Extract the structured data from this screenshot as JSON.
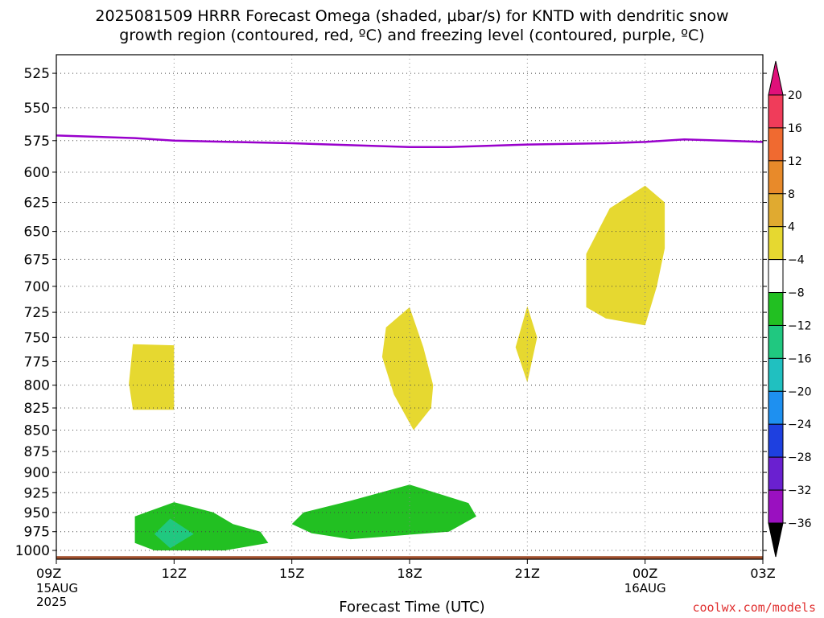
{
  "chart_data": {
    "type": "heatmap",
    "title_line1": "2025081509 HRRR Forecast Omega (shaded, μbar/s) for KNTD with dendritic snow",
    "title_line2": "growth region (contoured, red, ºC) and freezing level (contoured, purple, ºC)",
    "xlabel": "Forecast Time (UTC)",
    "credit": "coolwx.com/models",
    "x_range_hours": [
      0,
      18
    ],
    "x_ticks": [
      {
        "h": 0,
        "label": "09Z",
        "sub1": "15AUG",
        "sub2": "2025"
      },
      {
        "h": 3,
        "label": "12Z",
        "sub1": "",
        "sub2": ""
      },
      {
        "h": 6,
        "label": "15Z",
        "sub1": "",
        "sub2": ""
      },
      {
        "h": 9,
        "label": "18Z",
        "sub1": "",
        "sub2": ""
      },
      {
        "h": 12,
        "label": "21Z",
        "sub1": "",
        "sub2": ""
      },
      {
        "h": 15,
        "label": "00Z",
        "sub1": "16AUG",
        "sub2": ""
      },
      {
        "h": 18,
        "label": "03Z",
        "sub1": "",
        "sub2": ""
      }
    ],
    "y_axis": {
      "scale": "log-pressure",
      "range": [
        1012,
        512
      ],
      "ticks": [
        525,
        550,
        575,
        600,
        625,
        650,
        675,
        700,
        725,
        750,
        775,
        800,
        825,
        850,
        875,
        900,
        925,
        950,
        975,
        1000
      ]
    },
    "grid": true,
    "colorbar": {
      "labels": [
        "20",
        "16",
        "12",
        "8",
        "4",
        "−4",
        "−8",
        "−12",
        "−16",
        "−20",
        "−24",
        "−28",
        "−32",
        "−36"
      ],
      "colors": [
        "#f03c5a",
        "#f06a30",
        "#e88a2a",
        "#e0aa30",
        "#e6d830",
        "#ffffff",
        "#22c022",
        "#20c880",
        "#20c0c0",
        "#1e90f0",
        "#1e40e0",
        "#6a20d0",
        "#9a10c0",
        "#a8a8a8"
      ],
      "top_arrow_color": "#e0107a",
      "bottom_arrow_color": "#000000"
    },
    "freezing_level": {
      "color": "#9900cc",
      "points": [
        [
          0,
          571
        ],
        [
          2,
          573
        ],
        [
          3,
          575
        ],
        [
          6,
          577
        ],
        [
          9,
          580
        ],
        [
          10,
          580
        ],
        [
          12,
          578
        ],
        [
          14,
          577
        ],
        [
          15,
          576
        ],
        [
          16,
          574
        ],
        [
          17,
          575
        ],
        [
          18,
          576
        ]
      ]
    },
    "omega_regions": [
      {
        "value_range": "4 to 8",
        "color": "#e6d830",
        "points": [
          [
            1.95,
            757
          ],
          [
            3.0,
            758
          ],
          [
            3.0,
            827
          ],
          [
            1.95,
            827
          ],
          [
            1.85,
            798
          ]
        ]
      },
      {
        "value_range": "4 to 8",
        "color": "#e6d830",
        "points": [
          [
            9.0,
            720
          ],
          [
            9.35,
            760
          ],
          [
            9.6,
            800
          ],
          [
            9.55,
            825
          ],
          [
            9.1,
            850
          ],
          [
            8.6,
            810
          ],
          [
            8.3,
            770
          ],
          [
            8.4,
            740
          ]
        ]
      },
      {
        "value_range": "4 to 8",
        "color": "#e6d830",
        "points": [
          [
            12.0,
            719
          ],
          [
            12.25,
            750
          ],
          [
            12.0,
            797
          ],
          [
            11.7,
            760
          ]
        ]
      },
      {
        "value_range": "4 to 8",
        "color": "#e6d830",
        "points": [
          [
            14.1,
            630
          ],
          [
            15.0,
            611
          ],
          [
            15.5,
            625
          ],
          [
            15.5,
            665
          ],
          [
            15.3,
            700
          ],
          [
            15.0,
            738
          ],
          [
            14.0,
            731
          ],
          [
            13.5,
            720
          ],
          [
            13.5,
            670
          ]
        ]
      },
      {
        "value_range": "-8 to -4",
        "color": "#22c022",
        "points": [
          [
            3.0,
            937
          ],
          [
            4.0,
            950
          ],
          [
            4.5,
            965
          ],
          [
            5.2,
            975
          ],
          [
            5.4,
            990
          ],
          [
            4.3,
            1000
          ],
          [
            2.5,
            1000
          ],
          [
            2.0,
            990
          ],
          [
            2.0,
            955
          ]
        ]
      },
      {
        "value_range": "-12 to -8",
        "color": "#20c880",
        "points": [
          [
            2.5,
            978
          ],
          [
            2.9,
            958
          ],
          [
            3.5,
            978
          ],
          [
            2.9,
            997
          ]
        ]
      },
      {
        "value_range": "-8 to -4",
        "color": "#22c022",
        "points": [
          [
            6.3,
            950
          ],
          [
            7.5,
            935
          ],
          [
            9.0,
            915
          ],
          [
            10.5,
            938
          ],
          [
            10.7,
            955
          ],
          [
            10.0,
            975
          ],
          [
            7.5,
            985
          ],
          [
            6.5,
            977
          ],
          [
            6.0,
            965
          ]
        ]
      }
    ],
    "terrain": {
      "color": "#a0502e",
      "pressure": 1010
    }
  }
}
